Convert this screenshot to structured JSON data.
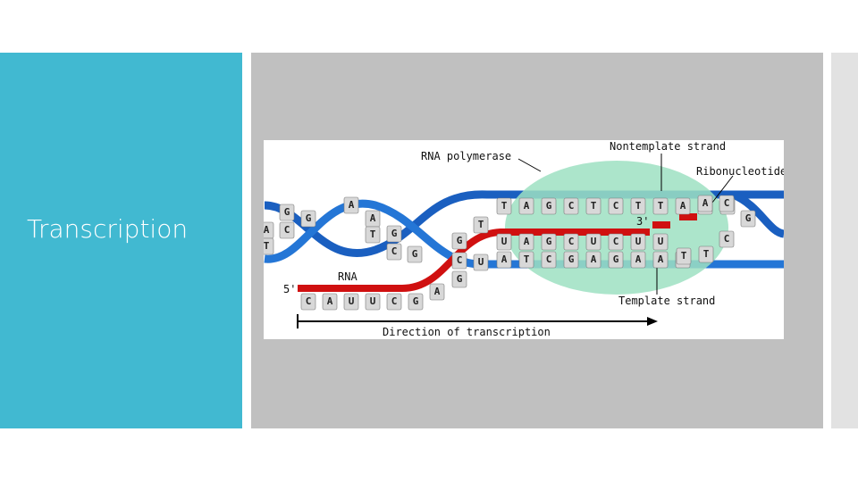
{
  "slide": {
    "title": "Transcription"
  },
  "diagram": {
    "labels": {
      "rna_polymerase": "RNA polymerase",
      "nontemplate_strand": "Nontemplate strand",
      "ribonucleotide": "Ribonucleotide",
      "three_prime": "3'",
      "five_prime": "5'",
      "rna": "RNA",
      "template_strand": "Template strand",
      "direction": "Direction of transcription"
    },
    "nontemplate_bases": [
      "T",
      "A",
      "G",
      "C",
      "T",
      "C",
      "T",
      "T",
      "A",
      "A",
      "G"
    ],
    "rna_bases": [
      "U",
      "A",
      "G",
      "C",
      "U",
      "C",
      "U",
      "U"
    ],
    "template_bases": [
      "A",
      "T",
      "C",
      "G",
      "A",
      "G",
      "A",
      "A",
      "T"
    ],
    "rna_tail_bases": [
      "C",
      "A",
      "U",
      "U",
      "C",
      "G"
    ],
    "helix_bases": [
      "G",
      "A",
      "C",
      "T",
      "G",
      "A",
      "A",
      "T",
      "G",
      "C",
      "G",
      "G",
      "C",
      "U",
      "G",
      "A",
      "T",
      "C",
      "G",
      "C",
      "T",
      "T",
      "A"
    ]
  }
}
